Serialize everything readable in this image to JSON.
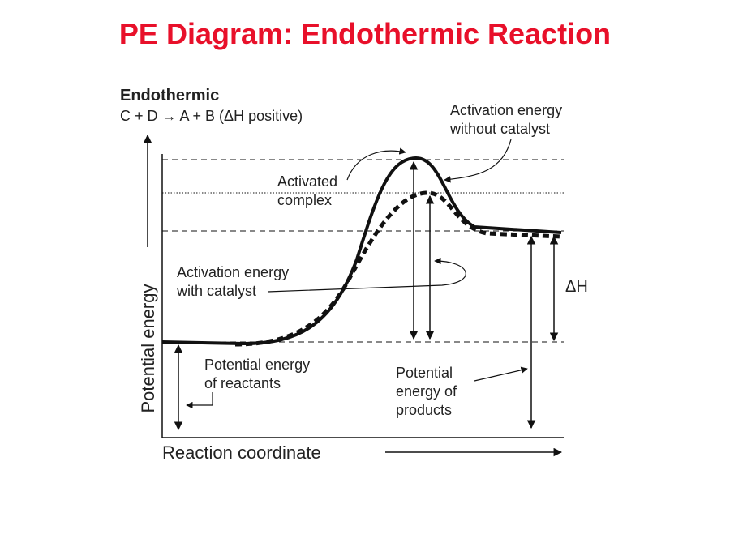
{
  "header": {
    "title": "PE Diagram: Endothermic Reaction"
  },
  "diagram": {
    "heading": "Endothermic",
    "equation": "C + D → A + B (ΔH positive)",
    "y_axis_label": "Potential energy",
    "x_axis_label": "Reaction coordinate",
    "labels": {
      "activation_without_catalyst": [
        "Activation energy",
        "without catalyst"
      ],
      "activated_complex": [
        "Activated",
        "complex"
      ],
      "activation_with_catalyst": [
        "Activation energy",
        "with catalyst"
      ],
      "delta_h": "ΔH",
      "reactants": [
        "Potential energy",
        "of reactants"
      ],
      "products": [
        "Potential",
        "energy of",
        "products"
      ]
    }
  }
}
